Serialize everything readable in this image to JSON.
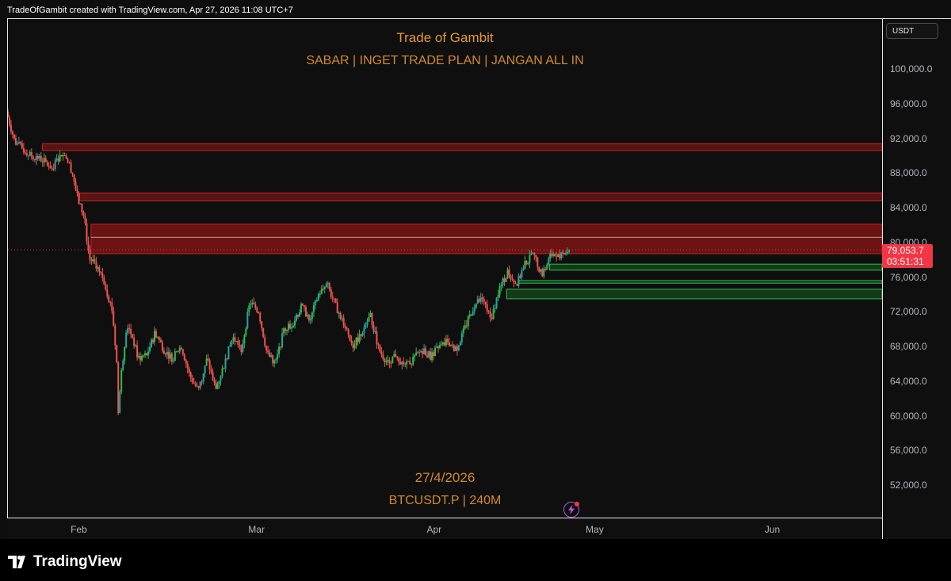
{
  "header": {
    "credit": "TradeOfGambit created with TradingView.com, Apr 27, 2026 11:08 UTC+7"
  },
  "overlay": {
    "title": "Trade of Gambit",
    "subtitle": "SABAR | INGET TRADE PLAN | JANGAN ALL IN",
    "date": "27/4/2026",
    "symbol": "BTCUSDT.P | 240M"
  },
  "price_axis": {
    "currency": "USDT",
    "ticks": [
      "100,000.0",
      "96,000.0",
      "92,000.0",
      "88,000.0",
      "84,000.0",
      "80,000.0",
      "76,000.0",
      "72,000.0",
      "68,000.0",
      "64,000.0",
      "60,000.0",
      "56,000.0",
      "52,000.0"
    ],
    "last_price": "79,053.7",
    "countdown": "03:51:31"
  },
  "time_axis": {
    "ticks": [
      "Feb",
      "Mar",
      "Apr",
      "May",
      "Jun"
    ]
  },
  "footer": {
    "brand": "TradingView"
  },
  "colors": {
    "bull": "#26a69a",
    "bull_bright": "#2ebd4e",
    "bear": "#ef5350",
    "supply_zone": "#8b1515",
    "demand_zone": "#1f8a2a",
    "last_price_bg": "#f23645",
    "text_accent": "#d28a2a"
  },
  "chart_data": {
    "type": "candlestick",
    "symbol": "BTCUSDT.P",
    "interval": "240M",
    "ylim": [
      48000,
      104000
    ],
    "last_price": 79053.7,
    "path": [
      [
        0,
        95000
      ],
      [
        3,
        91500
      ],
      [
        8,
        90000
      ],
      [
        12,
        89500
      ],
      [
        16,
        88500
      ],
      [
        20,
        90500
      ],
      [
        23,
        88000
      ],
      [
        25,
        84800
      ],
      [
        27,
        83000
      ],
      [
        29,
        78000
      ],
      [
        31,
        77500
      ],
      [
        34,
        75500
      ],
      [
        37,
        72000
      ],
      [
        38.5,
        66000
      ],
      [
        39,
        60000
      ],
      [
        40,
        64500
      ],
      [
        42,
        70500
      ],
      [
        44,
        69000
      ],
      [
        46,
        66500
      ],
      [
        49,
        67000
      ],
      [
        52,
        69500
      ],
      [
        55,
        67500
      ],
      [
        58,
        66500
      ],
      [
        61,
        68000
      ],
      [
        64,
        64500
      ],
      [
        67,
        62800
      ],
      [
        70,
        66500
      ],
      [
        73,
        63000
      ],
      [
        76,
        65800
      ],
      [
        79,
        69000
      ],
      [
        82,
        67500
      ],
      [
        85,
        73000
      ],
      [
        88,
        72000
      ],
      [
        91,
        67000
      ],
      [
        94,
        66000
      ],
      [
        97,
        70000
      ],
      [
        100,
        70500
      ],
      [
        103,
        72500
      ],
      [
        106,
        71000
      ],
      [
        109,
        74000
      ],
      [
        112,
        75000
      ],
      [
        115,
        72500
      ],
      [
        118,
        70500
      ],
      [
        121,
        68000
      ],
      [
        124,
        69500
      ],
      [
        127,
        71500
      ],
      [
        130,
        67500
      ],
      [
        133,
        66000
      ],
      [
        136,
        67000
      ],
      [
        139,
        65500
      ],
      [
        142,
        66500
      ],
      [
        145,
        67500
      ],
      [
        148,
        66800
      ],
      [
        151,
        67800
      ],
      [
        154,
        68500
      ],
      [
        157,
        67500
      ],
      [
        160,
        70000
      ],
      [
        163,
        72500
      ],
      [
        166,
        73500
      ],
      [
        169,
        71000
      ],
      [
        172,
        74500
      ],
      [
        175,
        76500
      ],
      [
        178,
        75000
      ],
      [
        181,
        77500
      ],
      [
        184,
        78500
      ],
      [
        187,
        76000
      ],
      [
        190,
        78500
      ],
      [
        193,
        78200
      ],
      [
        196,
        79053.7
      ]
    ],
    "x_ticks": {
      "Feb": 25,
      "Mar": 87,
      "Apr": 149,
      "May": 205,
      "Jun": 267
    },
    "x_range": [
      0,
      305
    ],
    "supply_zones": [
      [
        90500,
        91300
      ],
      [
        84700,
        85600
      ],
      [
        78600,
        82000
      ]
    ],
    "demand_zones": [
      [
        76700,
        77400
      ],
      [
        75200,
        75500
      ],
      [
        73400,
        74500
      ]
    ],
    "support_levels": [
      80500
    ]
  }
}
